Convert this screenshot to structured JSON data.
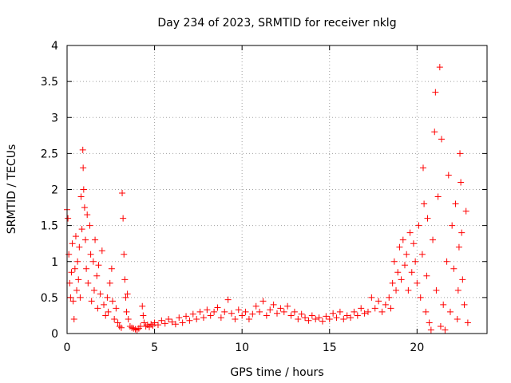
{
  "chart_data": {
    "type": "scatter",
    "title": "Day 234 of 2023, SRMTID for receiver nklg",
    "xlabel": "GPS time / hours",
    "ylabel": "SRMTID / TECUs",
    "xlim": [
      0,
      24
    ],
    "ylim": [
      0,
      4
    ],
    "xticks": [
      0,
      5,
      10,
      15,
      20
    ],
    "xtick_labels": [
      "0",
      "5",
      "10",
      "15",
      "20"
    ],
    "yticks": [
      0,
      0.5,
      1,
      1.5,
      2,
      2.5,
      3,
      3.5,
      4
    ],
    "ytick_labels": [
      "0",
      "0.5",
      "1",
      "1.5",
      "2",
      "2.5",
      "3",
      "3.5",
      "4"
    ],
    "grid": true,
    "marker": "plus",
    "series": [
      {
        "name": "SRMTID",
        "color": "#ff0000",
        "points": [
          [
            0.0,
            1.72
          ],
          [
            0.05,
            1.6
          ],
          [
            0.1,
            1.1
          ],
          [
            0.15,
            0.7
          ],
          [
            0.2,
            0.5
          ],
          [
            0.25,
            0.85
          ],
          [
            0.3,
            1.25
          ],
          [
            0.35,
            0.45
          ],
          [
            0.4,
            0.2
          ],
          [
            0.45,
            0.9
          ],
          [
            0.5,
            1.35
          ],
          [
            0.55,
            0.6
          ],
          [
            0.6,
            1.0
          ],
          [
            0.65,
            0.75
          ],
          [
            0.7,
            1.2
          ],
          [
            0.75,
            0.5
          ],
          [
            0.8,
            1.9
          ],
          [
            0.85,
            1.45
          ],
          [
            0.9,
            2.55
          ],
          [
            0.92,
            2.3
          ],
          [
            0.95,
            2.0
          ],
          [
            1.0,
            1.75
          ],
          [
            1.05,
            1.3
          ],
          [
            1.1,
            0.9
          ],
          [
            1.15,
            1.65
          ],
          [
            1.2,
            0.7
          ],
          [
            1.3,
            1.5
          ],
          [
            1.35,
            1.1
          ],
          [
            1.4,
            0.45
          ],
          [
            1.5,
            1.0
          ],
          [
            1.55,
            0.6
          ],
          [
            1.6,
            1.3
          ],
          [
            1.7,
            0.8
          ],
          [
            1.75,
            0.35
          ],
          [
            1.8,
            0.95
          ],
          [
            1.9,
            0.55
          ],
          [
            2.0,
            1.15
          ],
          [
            2.1,
            0.4
          ],
          [
            2.2,
            0.25
          ],
          [
            2.3,
            0.5
          ],
          [
            2.35,
            0.3
          ],
          [
            2.45,
            0.7
          ],
          [
            2.55,
            0.9
          ],
          [
            2.6,
            0.45
          ],
          [
            2.7,
            0.2
          ],
          [
            2.8,
            0.35
          ],
          [
            2.9,
            0.15
          ],
          [
            3.0,
            0.1
          ],
          [
            3.1,
            0.08
          ],
          [
            3.15,
            1.95
          ],
          [
            3.2,
            1.6
          ],
          [
            3.25,
            1.1
          ],
          [
            3.3,
            0.75
          ],
          [
            3.35,
            0.5
          ],
          [
            3.4,
            0.3
          ],
          [
            3.45,
            0.55
          ],
          [
            3.5,
            0.2
          ],
          [
            3.6,
            0.1
          ],
          [
            3.7,
            0.08
          ],
          [
            3.8,
            0.07
          ],
          [
            3.9,
            0.06
          ],
          [
            4.0,
            0.05
          ],
          [
            4.1,
            0.07
          ],
          [
            4.2,
            0.1
          ],
          [
            4.3,
            0.38
          ],
          [
            4.35,
            0.25
          ],
          [
            4.4,
            0.15
          ],
          [
            4.5,
            0.1
          ],
          [
            4.6,
            0.12
          ],
          [
            4.7,
            0.09
          ],
          [
            4.8,
            0.13
          ],
          [
            4.9,
            0.11
          ],
          [
            5.0,
            0.15
          ],
          [
            5.2,
            0.12
          ],
          [
            5.4,
            0.18
          ],
          [
            5.6,
            0.14
          ],
          [
            5.8,
            0.2
          ],
          [
            6.0,
            0.16
          ],
          [
            6.2,
            0.13
          ],
          [
            6.4,
            0.22
          ],
          [
            6.6,
            0.15
          ],
          [
            6.8,
            0.24
          ],
          [
            7.0,
            0.18
          ],
          [
            7.2,
            0.27
          ],
          [
            7.4,
            0.2
          ],
          [
            7.6,
            0.3
          ],
          [
            7.8,
            0.22
          ],
          [
            8.0,
            0.33
          ],
          [
            8.2,
            0.25
          ],
          [
            8.4,
            0.3
          ],
          [
            8.6,
            0.36
          ],
          [
            8.8,
            0.22
          ],
          [
            9.0,
            0.3
          ],
          [
            9.2,
            0.47
          ],
          [
            9.4,
            0.28
          ],
          [
            9.6,
            0.2
          ],
          [
            9.8,
            0.33
          ],
          [
            10.0,
            0.25
          ],
          [
            10.2,
            0.3
          ],
          [
            10.4,
            0.2
          ],
          [
            10.6,
            0.27
          ],
          [
            10.8,
            0.38
          ],
          [
            11.0,
            0.3
          ],
          [
            11.2,
            0.45
          ],
          [
            11.4,
            0.25
          ],
          [
            11.6,
            0.33
          ],
          [
            11.8,
            0.4
          ],
          [
            12.0,
            0.28
          ],
          [
            12.2,
            0.35
          ],
          [
            12.4,
            0.3
          ],
          [
            12.6,
            0.38
          ],
          [
            12.8,
            0.25
          ],
          [
            13.0,
            0.3
          ],
          [
            13.2,
            0.2
          ],
          [
            13.4,
            0.27
          ],
          [
            13.6,
            0.22
          ],
          [
            13.8,
            0.18
          ],
          [
            14.0,
            0.25
          ],
          [
            14.2,
            0.2
          ],
          [
            14.4,
            0.22
          ],
          [
            14.6,
            0.17
          ],
          [
            14.8,
            0.24
          ],
          [
            15.0,
            0.2
          ],
          [
            15.2,
            0.28
          ],
          [
            15.4,
            0.22
          ],
          [
            15.6,
            0.3
          ],
          [
            15.8,
            0.2
          ],
          [
            16.0,
            0.25
          ],
          [
            16.2,
            0.22
          ],
          [
            16.4,
            0.3
          ],
          [
            16.6,
            0.25
          ],
          [
            16.8,
            0.35
          ],
          [
            17.0,
            0.28
          ],
          [
            17.2,
            0.3
          ],
          [
            17.4,
            0.5
          ],
          [
            17.6,
            0.35
          ],
          [
            17.8,
            0.45
          ],
          [
            18.0,
            0.3
          ],
          [
            18.2,
            0.4
          ],
          [
            18.4,
            0.5
          ],
          [
            18.5,
            0.35
          ],
          [
            18.6,
            0.7
          ],
          [
            18.7,
            1.0
          ],
          [
            18.8,
            0.6
          ],
          [
            18.9,
            0.85
          ],
          [
            19.0,
            1.2
          ],
          [
            19.1,
            0.75
          ],
          [
            19.2,
            1.3
          ],
          [
            19.3,
            0.95
          ],
          [
            19.4,
            1.1
          ],
          [
            19.5,
            0.6
          ],
          [
            19.6,
            1.4
          ],
          [
            19.7,
            0.85
          ],
          [
            19.8,
            1.25
          ],
          [
            19.9,
            1.0
          ],
          [
            20.0,
            0.7
          ],
          [
            20.1,
            1.5
          ],
          [
            20.2,
            0.5
          ],
          [
            20.3,
            1.1
          ],
          [
            20.35,
            2.3
          ],
          [
            20.4,
            1.8
          ],
          [
            20.5,
            0.3
          ],
          [
            20.55,
            0.8
          ],
          [
            20.6,
            1.6
          ],
          [
            20.7,
            0.15
          ],
          [
            20.8,
            0.05
          ],
          [
            20.9,
            1.3
          ],
          [
            21.0,
            2.8
          ],
          [
            21.05,
            3.35
          ],
          [
            21.1,
            0.6
          ],
          [
            21.2,
            1.9
          ],
          [
            21.3,
            3.7
          ],
          [
            21.35,
            0.1
          ],
          [
            21.4,
            2.7
          ],
          [
            21.5,
            0.4
          ],
          [
            21.6,
            0.05
          ],
          [
            21.7,
            1.0
          ],
          [
            21.8,
            2.2
          ],
          [
            21.9,
            0.3
          ],
          [
            22.0,
            1.5
          ],
          [
            22.1,
            0.9
          ],
          [
            22.2,
            1.8
          ],
          [
            22.3,
            0.2
          ],
          [
            22.35,
            0.6
          ],
          [
            22.4,
            1.2
          ],
          [
            22.45,
            2.5
          ],
          [
            22.5,
            2.1
          ],
          [
            22.55,
            1.4
          ],
          [
            22.6,
            0.75
          ],
          [
            22.7,
            0.4
          ],
          [
            22.8,
            1.7
          ],
          [
            22.9,
            0.15
          ]
        ]
      }
    ]
  }
}
